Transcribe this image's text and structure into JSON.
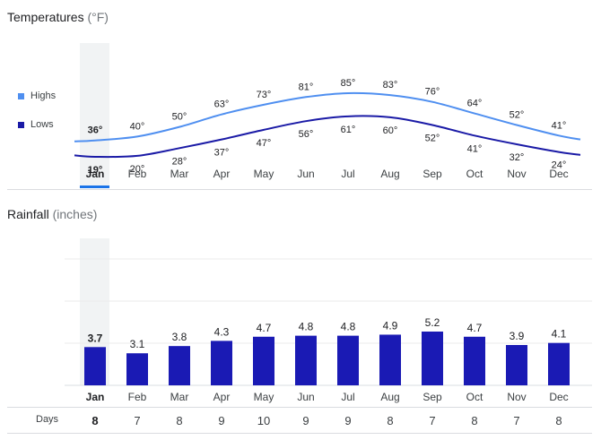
{
  "temperatures": {
    "title": "Temperatures",
    "unit": "(°F)",
    "legend": {
      "highs": "Highs",
      "lows": "Lows"
    },
    "highs_color": "#4f8ff0",
    "lows_color": "#1a1aa6"
  },
  "rainfall": {
    "title": "Rainfall",
    "unit": "(inches)",
    "bar_color": "#1a1ab4"
  },
  "days_title": "Days",
  "selected_month": "Jan",
  "months": [
    "Jan",
    "Feb",
    "Mar",
    "Apr",
    "May",
    "Jun",
    "Jul",
    "Aug",
    "Sep",
    "Oct",
    "Nov",
    "Dec"
  ],
  "chart_data": [
    {
      "type": "line",
      "title": "Temperatures",
      "categories": [
        "Jan",
        "Feb",
        "Mar",
        "Apr",
        "May",
        "Jun",
        "Jul",
        "Aug",
        "Sep",
        "Oct",
        "Nov",
        "Dec"
      ],
      "series": [
        {
          "name": "Highs",
          "values": [
            36,
            40,
            50,
            63,
            73,
            81,
            85,
            83,
            76,
            64,
            52,
            41
          ],
          "labels": [
            "36°",
            "40°",
            "50°",
            "63°",
            "73°",
            "81°",
            "85°",
            "83°",
            "76°",
            "64°",
            "52°",
            "41°"
          ]
        },
        {
          "name": "Lows",
          "values": [
            19,
            20,
            28,
            37,
            47,
            56,
            61,
            60,
            52,
            41,
            32,
            24
          ],
          "labels": [
            "19°",
            "20°",
            "28°",
            "37°",
            "47°",
            "56°",
            "61°",
            "60°",
            "52°",
            "41°",
            "32°",
            "24°"
          ]
        }
      ]
    },
    {
      "type": "bar",
      "title": "Rainfall",
      "categories": [
        "Jan",
        "Feb",
        "Mar",
        "Apr",
        "May",
        "Jun",
        "Jul",
        "Aug",
        "Sep",
        "Oct",
        "Nov",
        "Dec"
      ],
      "values": [
        3.7,
        3.1,
        3.8,
        4.3,
        4.7,
        4.8,
        4.8,
        4.9,
        5.2,
        4.7,
        3.9,
        4.1
      ],
      "labels": [
        "3.7",
        "3.1",
        "3.8",
        "4.3",
        "4.7",
        "4.8",
        "4.8",
        "4.9",
        "5.2",
        "4.7",
        "3.9",
        "4.1"
      ]
    }
  ],
  "days": [
    "8",
    "7",
    "8",
    "9",
    "10",
    "9",
    "9",
    "8",
    "7",
    "8",
    "7",
    "8"
  ]
}
